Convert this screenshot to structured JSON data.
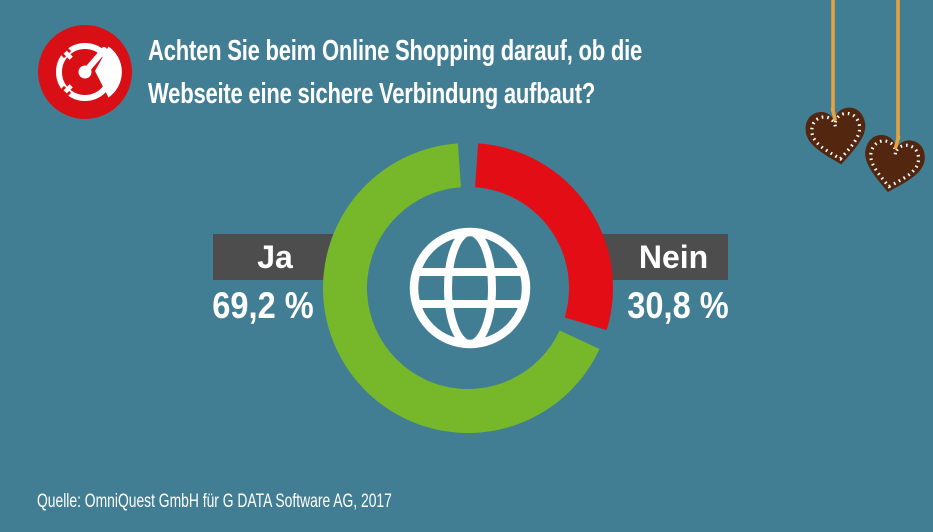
{
  "page": {
    "background": "#417e94"
  },
  "brand": {
    "badge_red": "#d90f16",
    "icon": "tachometer-icon"
  },
  "header": {
    "title_line1": "Achten Sie beim Online Shopping darauf, ob die",
    "title_line2": "Webseite eine sichere Verbindung aufbaut?"
  },
  "chart_data": {
    "type": "donut",
    "title": "Achten Sie beim Online Shopping darauf, ob die Webseite eine sichere Verbindung aufbaut?",
    "center_icon": "globe-icon",
    "units": "percent",
    "segments": [
      {
        "label": "Ja",
        "value": 69.2,
        "display": "69,2 %",
        "color": "#76b82a",
        "side": "left"
      },
      {
        "label": "Nein",
        "value": 30.8,
        "display": "30,8 %",
        "color": "#e30d16",
        "side": "right"
      }
    ],
    "total": 100,
    "label_box_color": "#4d4d4d",
    "label_text_color": "#ffffff",
    "layout_hint": "segments start at 12 o'clock; Nein clockwise right, Ja counter-clockwise left; gaps at boundaries"
  },
  "decor": {
    "ornament": "gingerbread-hearts",
    "string_color": "#e8a33c",
    "heart_color": "#53260f",
    "icing_color": "#ffffff"
  },
  "footer": {
    "source": "Quelle: OmniQuest GmbH für G DATA Software AG, 2017"
  }
}
